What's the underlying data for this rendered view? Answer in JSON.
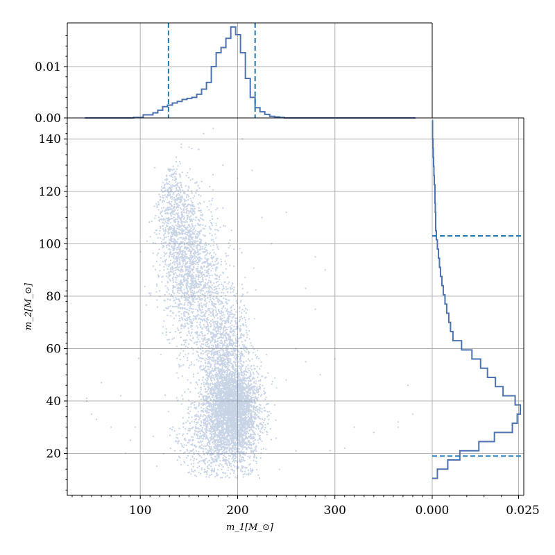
{
  "chart_data": [
    {
      "panel": "main-scatter",
      "type": "scatter",
      "xlabel": "m_1[M_⊙]",
      "ylabel": "m_2[M_⊙]",
      "xlim": [
        25,
        400
      ],
      "ylim": [
        4,
        148
      ],
      "xticks": [
        100,
        200,
        300
      ],
      "yticks": [
        20,
        40,
        60,
        80,
        100,
        120,
        140
      ],
      "grid": true,
      "point_color": "#4c72b0",
      "point_alpha": 0.3,
      "clusters": [
        {
          "center": [
            195,
            36
          ],
          "spread": [
            14,
            9
          ],
          "count": 3400
        },
        {
          "center": [
            185,
            60
          ],
          "spread": [
            13,
            12
          ],
          "count": 1100
        },
        {
          "center": [
            155,
            85
          ],
          "spread": [
            16,
            13
          ],
          "count": 1200
        },
        {
          "center": [
            140,
            105
          ],
          "spread": [
            12,
            10
          ],
          "count": 700
        },
        {
          "center": [
            130,
            120
          ],
          "spread": [
            8,
            7
          ],
          "count": 250
        },
        {
          "center": [
            175,
            25
          ],
          "spread": [
            20,
            7
          ],
          "count": 600
        }
      ],
      "sparse_points": [
        [
          45,
          41
        ],
        [
          45,
          40
        ],
        [
          60,
          47
        ],
        [
          70,
          30
        ],
        [
          50,
          35
        ],
        [
          55,
          33
        ],
        [
          80,
          42
        ],
        [
          85,
          20
        ],
        [
          90,
          25
        ],
        [
          95,
          30
        ],
        [
          240,
          45
        ],
        [
          250,
          48
        ],
        [
          260,
          60
        ],
        [
          270,
          55
        ],
        [
          280,
          75
        ],
        [
          285,
          50
        ],
        [
          300,
          56
        ],
        [
          320,
          30
        ],
        [
          340,
          28
        ],
        [
          365,
          32
        ],
        [
          365,
          30
        ],
        [
          380,
          35
        ],
        [
          375,
          46
        ],
        [
          290,
          90
        ],
        [
          270,
          83
        ],
        [
          295,
          21
        ],
        [
          310,
          22
        ],
        [
          260,
          21
        ],
        [
          235,
          100
        ],
        [
          225,
          110
        ],
        [
          250,
          112
        ],
        [
          280,
          95
        ],
        [
          205,
          140
        ],
        [
          175,
          144
        ],
        [
          165,
          142
        ],
        [
          160,
          136
        ],
        [
          185,
          130
        ],
        [
          200,
          125
        ],
        [
          215,
          128
        ],
        [
          115,
          129
        ]
      ]
    },
    {
      "panel": "top-marginal",
      "type": "histogram",
      "ylim": [
        0,
        0.0185
      ],
      "yticks": [
        0.0,
        0.01
      ],
      "ytick_labels": [
        "0.00",
        "0.01"
      ],
      "grid": true,
      "color": "#4c72b0",
      "bin_edges": [
        43,
        53,
        63,
        73,
        83,
        93,
        103,
        113,
        118,
        123,
        128,
        133,
        138,
        143,
        148,
        153,
        158,
        163,
        168,
        173,
        178,
        183,
        188,
        193,
        198,
        203,
        208,
        213,
        218,
        223,
        228,
        233,
        238,
        243,
        248,
        253,
        258,
        263,
        268,
        273,
        283,
        293,
        303,
        313,
        323,
        333,
        343,
        353,
        363,
        373,
        383
      ],
      "counts": [
        0,
        0,
        0,
        0,
        0,
        0.0001,
        0.0006,
        0.001,
        0.0015,
        0.0022,
        0.0025,
        0.0029,
        0.0032,
        0.0036,
        0.0038,
        0.004,
        0.0046,
        0.0056,
        0.0069,
        0.01,
        0.0127,
        0.0137,
        0.0155,
        0.0177,
        0.0162,
        0.0127,
        0.0077,
        0.004,
        0.002,
        0.0012,
        0.0007,
        0.0003,
        0.0002,
        0.0001,
        0,
        0,
        0,
        0,
        0,
        0,
        0,
        0,
        0,
        0,
        0,
        0,
        0,
        0,
        0,
        0
      ],
      "ref_lines": [
        129,
        218
      ]
    },
    {
      "panel": "right-marginal",
      "type": "histogram",
      "orientation": "horizontal",
      "xlim": [
        0,
        0.0265
      ],
      "xticks": [
        0.0,
        0.025
      ],
      "xtick_labels": [
        "0.000",
        "0.025"
      ],
      "grid": true,
      "color": "#4c72b0",
      "bin_edges": [
        10.5,
        14,
        17.5,
        21,
        24.5,
        28,
        31.5,
        35,
        38.5,
        42,
        45.5,
        49,
        52.5,
        56,
        59.5,
        63,
        66.5,
        70,
        73.5,
        77,
        80.5,
        84,
        87.5,
        91,
        94.5,
        98,
        101.5,
        105,
        108.5,
        112,
        115.5,
        119,
        122.5,
        126,
        129.5,
        133,
        136.5,
        140,
        143.5,
        147
      ],
      "counts": [
        0.0015,
        0.0045,
        0.008,
        0.0135,
        0.018,
        0.0232,
        0.0246,
        0.0255,
        0.024,
        0.0205,
        0.0183,
        0.016,
        0.014,
        0.0115,
        0.0085,
        0.006,
        0.0053,
        0.0048,
        0.0042,
        0.0037,
        0.0032,
        0.0028,
        0.0024,
        0.0021,
        0.0018,
        0.0015,
        0.0012,
        0.001,
        0.001,
        0.0009,
        0.0008,
        0.0008,
        0.0006,
        0.0005,
        0.0004,
        0.0003,
        0.0002,
        0.0001,
        0.0001
      ],
      "ref_lines": [
        19,
        103
      ]
    }
  ]
}
